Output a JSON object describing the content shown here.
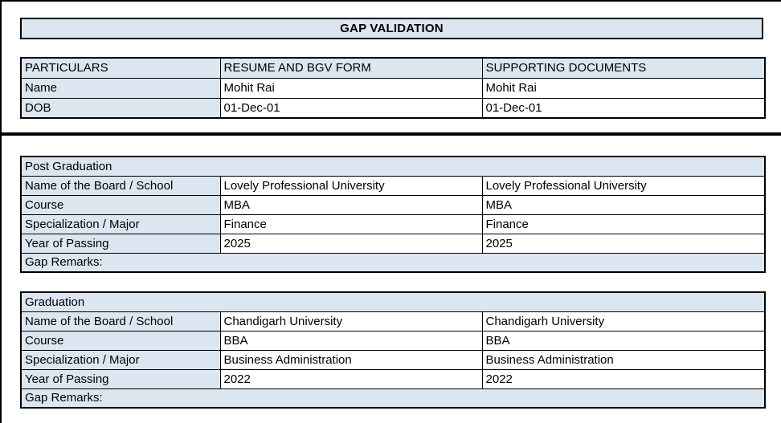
{
  "page": {
    "title": "GAP VALIDATION"
  },
  "colors": {
    "cell_fill": "#DCE6F1",
    "border": "#000000",
    "text": "#000000"
  },
  "info_table": {
    "headers": {
      "particulars": "PARTICULARS",
      "resume": "RESUME AND BGV FORM",
      "supporting": "SUPPORTING DOCUMENTS"
    },
    "rows": [
      {
        "label": "Name",
        "resume": "Mohit Rai",
        "supporting": "Mohit Rai"
      },
      {
        "label": "DOB",
        "resume": "01-Dec-01",
        "supporting": "01-Dec-01"
      }
    ]
  },
  "sections": [
    {
      "title": "Post Graduation",
      "rows": [
        {
          "label": "Name of the Board / School",
          "resume": "Lovely Professional University",
          "supporting": "Lovely Professional University"
        },
        {
          "label": "Course",
          "resume": "MBA",
          "supporting": "MBA"
        },
        {
          "label": "Specialization / Major",
          "resume": "Finance",
          "supporting": "Finance"
        },
        {
          "label": "Year of Passing",
          "resume": "2025",
          "supporting": "2025"
        }
      ],
      "footer": "Gap Remarks:"
    },
    {
      "title": "Graduation",
      "rows": [
        {
          "label": "Name of the Board / School",
          "resume": "Chandigarh University",
          "supporting": "Chandigarh University"
        },
        {
          "label": "Course",
          "resume": "BBA",
          "supporting": "BBA"
        },
        {
          "label": "Specialization / Major",
          "resume": "Business Administration",
          "supporting": "Business Administration"
        },
        {
          "label": "Year of Passing",
          "resume": "2022",
          "supporting": "2022"
        }
      ],
      "footer": "Gap Remarks:"
    }
  ]
}
